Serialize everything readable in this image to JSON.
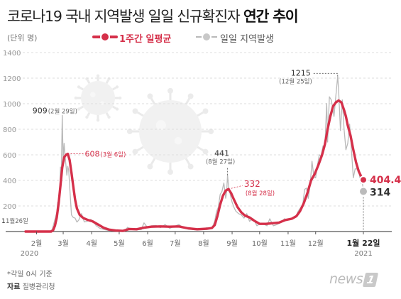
{
  "title_prefix": "코로나19 국내 지역발생 일일 신규확진자",
  "title_emphasis": "연간 추이",
  "unit_label": "(단위 명)",
  "legend": {
    "avg_label": "1주간 일평균",
    "daily_label": "일일 지역발생",
    "avg_color": "#d5304a",
    "daily_color": "#b9b9b9"
  },
  "footnote": "*각일 0시 기준",
  "source_label": "자료",
  "source_text": "질병관리청",
  "logo_text": "news",
  "logo_mark": "1",
  "chart_data": {
    "type": "line",
    "ylim": [
      0,
      1400
    ],
    "yticks": [
      "0",
      "200",
      "400",
      "600",
      "800",
      "1000",
      "1200",
      "1400"
    ],
    "grid": true,
    "legend_position": "top",
    "x_range": [
      "2020-01-20",
      "2021-01-22"
    ],
    "xticks": [
      {
        "label": "2월",
        "date": "2020-02-01"
      },
      {
        "label": "3월",
        "date": "2020-03-01"
      },
      {
        "label": "4월",
        "date": "2020-04-01"
      },
      {
        "label": "5월",
        "date": "2020-05-01"
      },
      {
        "label": "6월",
        "date": "2020-06-01"
      },
      {
        "label": "7월",
        "date": "2020-07-01"
      },
      {
        "label": "8월",
        "date": "2020-08-01"
      },
      {
        "label": "9월",
        "date": "2020-09-01"
      },
      {
        "label": "10월",
        "date": "2020-10-01"
      },
      {
        "label": "11월",
        "date": "2020-11-01"
      },
      {
        "label": "12월",
        "date": "2020-12-01"
      },
      {
        "label": "1월 22일",
        "date": "2021-01-22"
      }
    ],
    "year_labels": [
      {
        "label": "2020",
        "date": "2020-02-01"
      },
      {
        "label": "2021",
        "date": "2021-01-22"
      }
    ],
    "series": [
      {
        "name": "일일 지역발생",
        "color": "#b9b9b9",
        "points": [
          [
            "2020-01-20",
            0
          ],
          [
            "2020-01-26",
            1
          ],
          [
            "2020-02-15",
            0
          ],
          [
            "2020-02-18",
            15
          ],
          [
            "2020-02-21",
            95
          ],
          [
            "2020-02-23",
            150
          ],
          [
            "2020-02-24",
            230
          ],
          [
            "2020-02-25",
            165
          ],
          [
            "2020-02-26",
            280
          ],
          [
            "2020-02-27",
            505
          ],
          [
            "2020-02-28",
            450
          ],
          [
            "2020-02-29",
            909
          ],
          [
            "2020-03-01",
            560
          ],
          [
            "2020-03-02",
            690
          ],
          [
            "2020-03-03",
            600
          ],
          [
            "2020-03-04",
            520
          ],
          [
            "2020-03-05",
            440
          ],
          [
            "2020-03-06",
            510
          ],
          [
            "2020-03-07",
            480
          ],
          [
            "2020-03-08",
            360
          ],
          [
            "2020-03-09",
            245
          ],
          [
            "2020-03-10",
            130
          ],
          [
            "2020-03-12",
            110
          ],
          [
            "2020-03-14",
            105
          ],
          [
            "2020-03-16",
            74
          ],
          [
            "2020-03-18",
            90
          ],
          [
            "2020-03-21",
            140
          ],
          [
            "2020-03-24",
            75
          ],
          [
            "2020-03-27",
            80
          ],
          [
            "2020-03-31",
            95
          ],
          [
            "2020-04-03",
            80
          ],
          [
            "2020-04-06",
            45
          ],
          [
            "2020-04-10",
            25
          ],
          [
            "2020-04-15",
            15
          ],
          [
            "2020-04-20",
            8
          ],
          [
            "2020-04-25",
            6
          ],
          [
            "2020-04-30",
            3
          ],
          [
            "2020-05-07",
            2
          ],
          [
            "2020-05-10",
            33
          ],
          [
            "2020-05-12",
            25
          ],
          [
            "2020-05-15",
            20
          ],
          [
            "2020-05-20",
            18
          ],
          [
            "2020-05-25",
            14
          ],
          [
            "2020-05-28",
            68
          ],
          [
            "2020-06-01",
            30
          ],
          [
            "2020-06-05",
            45
          ],
          [
            "2020-06-10",
            48
          ],
          [
            "2020-06-15",
            30
          ],
          [
            "2020-06-20",
            55
          ],
          [
            "2020-06-25",
            25
          ],
          [
            "2020-06-30",
            40
          ],
          [
            "2020-07-05",
            55
          ],
          [
            "2020-07-10",
            30
          ],
          [
            "2020-07-15",
            25
          ],
          [
            "2020-07-20",
            15
          ],
          [
            "2020-07-25",
            20
          ],
          [
            "2020-07-31",
            22
          ],
          [
            "2020-08-05",
            30
          ],
          [
            "2020-08-10",
            28
          ],
          [
            "2020-08-13",
            80
          ],
          [
            "2020-08-15",
            155
          ],
          [
            "2020-08-17",
            190
          ],
          [
            "2020-08-19",
            290
          ],
          [
            "2020-08-21",
            315
          ],
          [
            "2020-08-23",
            380
          ],
          [
            "2020-08-25",
            260
          ],
          [
            "2020-08-26",
            305
          ],
          [
            "2020-08-27",
            441
          ],
          [
            "2020-08-28",
            360
          ],
          [
            "2020-08-30",
            290
          ],
          [
            "2020-09-01",
            230
          ],
          [
            "2020-09-03",
            190
          ],
          [
            "2020-09-05",
            160
          ],
          [
            "2020-09-08",
            140
          ],
          [
            "2020-09-11",
            130
          ],
          [
            "2020-09-14",
            105
          ],
          [
            "2020-09-17",
            140
          ],
          [
            "2020-09-20",
            80
          ],
          [
            "2020-09-24",
            100
          ],
          [
            "2020-09-28",
            45
          ],
          [
            "2020-10-01",
            60
          ],
          [
            "2020-10-05",
            60
          ],
          [
            "2020-10-09",
            45
          ],
          [
            "2020-10-12",
            100
          ],
          [
            "2020-10-16",
            45
          ],
          [
            "2020-10-20",
            55
          ],
          [
            "2020-10-24",
            70
          ],
          [
            "2020-10-28",
            100
          ],
          [
            "2020-11-01",
            90
          ],
          [
            "2020-11-05",
            105
          ],
          [
            "2020-11-09",
            110
          ],
          [
            "2020-11-12",
            160
          ],
          [
            "2020-11-15",
            190
          ],
          [
            "2020-11-17",
            210
          ],
          [
            "2020-11-19",
            330
          ],
          [
            "2020-11-21",
            340
          ],
          [
            "2020-11-23",
            260
          ],
          [
            "2020-11-25",
            365
          ],
          [
            "2020-11-27",
            550
          ],
          [
            "2020-11-29",
            430
          ],
          [
            "2020-12-01",
            420
          ],
          [
            "2020-12-03",
            520
          ],
          [
            "2020-12-05",
            600
          ],
          [
            "2020-12-07",
            595
          ],
          [
            "2020-12-09",
            670
          ],
          [
            "2020-12-11",
            660
          ],
          [
            "2020-12-13",
            1002
          ],
          [
            "2020-12-14",
            700
          ],
          [
            "2020-12-16",
            1054
          ],
          [
            "2020-12-18",
            1030
          ],
          [
            "2020-12-20",
            950
          ],
          [
            "2020-12-21",
            900
          ],
          [
            "2020-12-23",
            1060
          ],
          [
            "2020-12-25",
            1215
          ],
          [
            "2020-12-26",
            1105
          ],
          [
            "2020-12-28",
            790
          ],
          [
            "2020-12-30",
            1030
          ],
          [
            "2021-01-01",
            800
          ],
          [
            "2021-01-03",
            640
          ],
          [
            "2021-01-05",
            690
          ],
          [
            "2021-01-07",
            840
          ],
          [
            "2021-01-09",
            635
          ],
          [
            "2021-01-11",
            420
          ],
          [
            "2021-01-13",
            490
          ],
          [
            "2021-01-15",
            490
          ],
          [
            "2021-01-17",
            480
          ],
          [
            "2021-01-19",
            380
          ],
          [
            "2021-01-21",
            378
          ],
          [
            "2021-01-22",
            314
          ]
        ]
      },
      {
        "name": "1주간 일평균",
        "color": "#d5304a",
        "points": [
          [
            "2020-01-20",
            0
          ],
          [
            "2020-02-17",
            0
          ],
          [
            "2020-02-19",
            10
          ],
          [
            "2020-02-21",
            45
          ],
          [
            "2020-02-23",
            110
          ],
          [
            "2020-02-25",
            220
          ],
          [
            "2020-02-27",
            360
          ],
          [
            "2020-02-29",
            500
          ],
          [
            "2020-03-02",
            580
          ],
          [
            "2020-03-04",
            600
          ],
          [
            "2020-03-06",
            608
          ],
          [
            "2020-03-08",
            560
          ],
          [
            "2020-03-10",
            460
          ],
          [
            "2020-03-12",
            350
          ],
          [
            "2020-03-14",
            250
          ],
          [
            "2020-03-16",
            180
          ],
          [
            "2020-03-19",
            130
          ],
          [
            "2020-03-23",
            105
          ],
          [
            "2020-03-28",
            90
          ],
          [
            "2020-04-02",
            80
          ],
          [
            "2020-04-08",
            55
          ],
          [
            "2020-04-14",
            30
          ],
          [
            "2020-04-20",
            15
          ],
          [
            "2020-04-27",
            8
          ],
          [
            "2020-05-05",
            5
          ],
          [
            "2020-05-12",
            20
          ],
          [
            "2020-05-20",
            18
          ],
          [
            "2020-05-28",
            30
          ],
          [
            "2020-06-05",
            38
          ],
          [
            "2020-06-15",
            40
          ],
          [
            "2020-06-25",
            38
          ],
          [
            "2020-07-05",
            40
          ],
          [
            "2020-07-15",
            25
          ],
          [
            "2020-07-25",
            18
          ],
          [
            "2020-08-05",
            22
          ],
          [
            "2020-08-10",
            28
          ],
          [
            "2020-08-13",
            50
          ],
          [
            "2020-08-16",
            120
          ],
          [
            "2020-08-19",
            210
          ],
          [
            "2020-08-22",
            280
          ],
          [
            "2020-08-25",
            320
          ],
          [
            "2020-08-28",
            332
          ],
          [
            "2020-08-31",
            300
          ],
          [
            "2020-09-03",
            250
          ],
          [
            "2020-09-07",
            190
          ],
          [
            "2020-09-11",
            150
          ],
          [
            "2020-09-15",
            125
          ],
          [
            "2020-09-20",
            110
          ],
          [
            "2020-09-25",
            85
          ],
          [
            "2020-10-01",
            60
          ],
          [
            "2020-10-08",
            60
          ],
          [
            "2020-10-15",
            65
          ],
          [
            "2020-10-22",
            70
          ],
          [
            "2020-10-29",
            90
          ],
          [
            "2020-11-05",
            100
          ],
          [
            "2020-11-10",
            120
          ],
          [
            "2020-11-14",
            160
          ],
          [
            "2020-11-18",
            220
          ],
          [
            "2020-11-22",
            300
          ],
          [
            "2020-11-26",
            400
          ],
          [
            "2020-11-30",
            450
          ],
          [
            "2020-12-04",
            520
          ],
          [
            "2020-12-08",
            600
          ],
          [
            "2020-12-11",
            680
          ],
          [
            "2020-12-14",
            800
          ],
          [
            "2020-12-17",
            900
          ],
          [
            "2020-12-20",
            980
          ],
          [
            "2020-12-23",
            1010
          ],
          [
            "2020-12-26",
            1025
          ],
          [
            "2020-12-29",
            1010
          ],
          [
            "2021-01-01",
            950
          ],
          [
            "2021-01-03",
            900
          ],
          [
            "2021-01-05",
            830
          ],
          [
            "2021-01-08",
            750
          ],
          [
            "2021-01-11",
            640
          ],
          [
            "2021-01-14",
            540
          ],
          [
            "2021-01-17",
            470
          ],
          [
            "2021-01-20",
            425
          ],
          [
            "2021-01-22",
            404.4
          ]
        ]
      }
    ],
    "annotations": [
      {
        "value": "1",
        "note": "1월26일",
        "series": "일일 지역발생",
        "date": "2020-01-26",
        "y": 1
      },
      {
        "value": "909",
        "note": "(2월 29일)",
        "series": "일일 지역발생",
        "date": "2020-02-29",
        "y": 909
      },
      {
        "value": "608",
        "note": "(3월 6일)",
        "series": "1주간 일평균",
        "date": "2020-03-06",
        "y": 608
      },
      {
        "value": "441",
        "note": "(8월 27일)",
        "series": "일일 지역발생",
        "date": "2020-08-27",
        "y": 441
      },
      {
        "value": "332",
        "note": "(8월 28일)",
        "series": "1주간 일평균",
        "date": "2020-08-28",
        "y": 332
      },
      {
        "value": "1215",
        "note": "(12월 25일)",
        "series": "일일 지역발생",
        "date": "2020-12-25",
        "y": 1215
      },
      {
        "value": "404.4",
        "note": "",
        "series": "1주간 일평균",
        "date": "2021-01-22",
        "y": 404.4
      },
      {
        "value": "314",
        "note": "",
        "series": "일일 지역발생",
        "date": "2021-01-22",
        "y": 314
      }
    ]
  }
}
